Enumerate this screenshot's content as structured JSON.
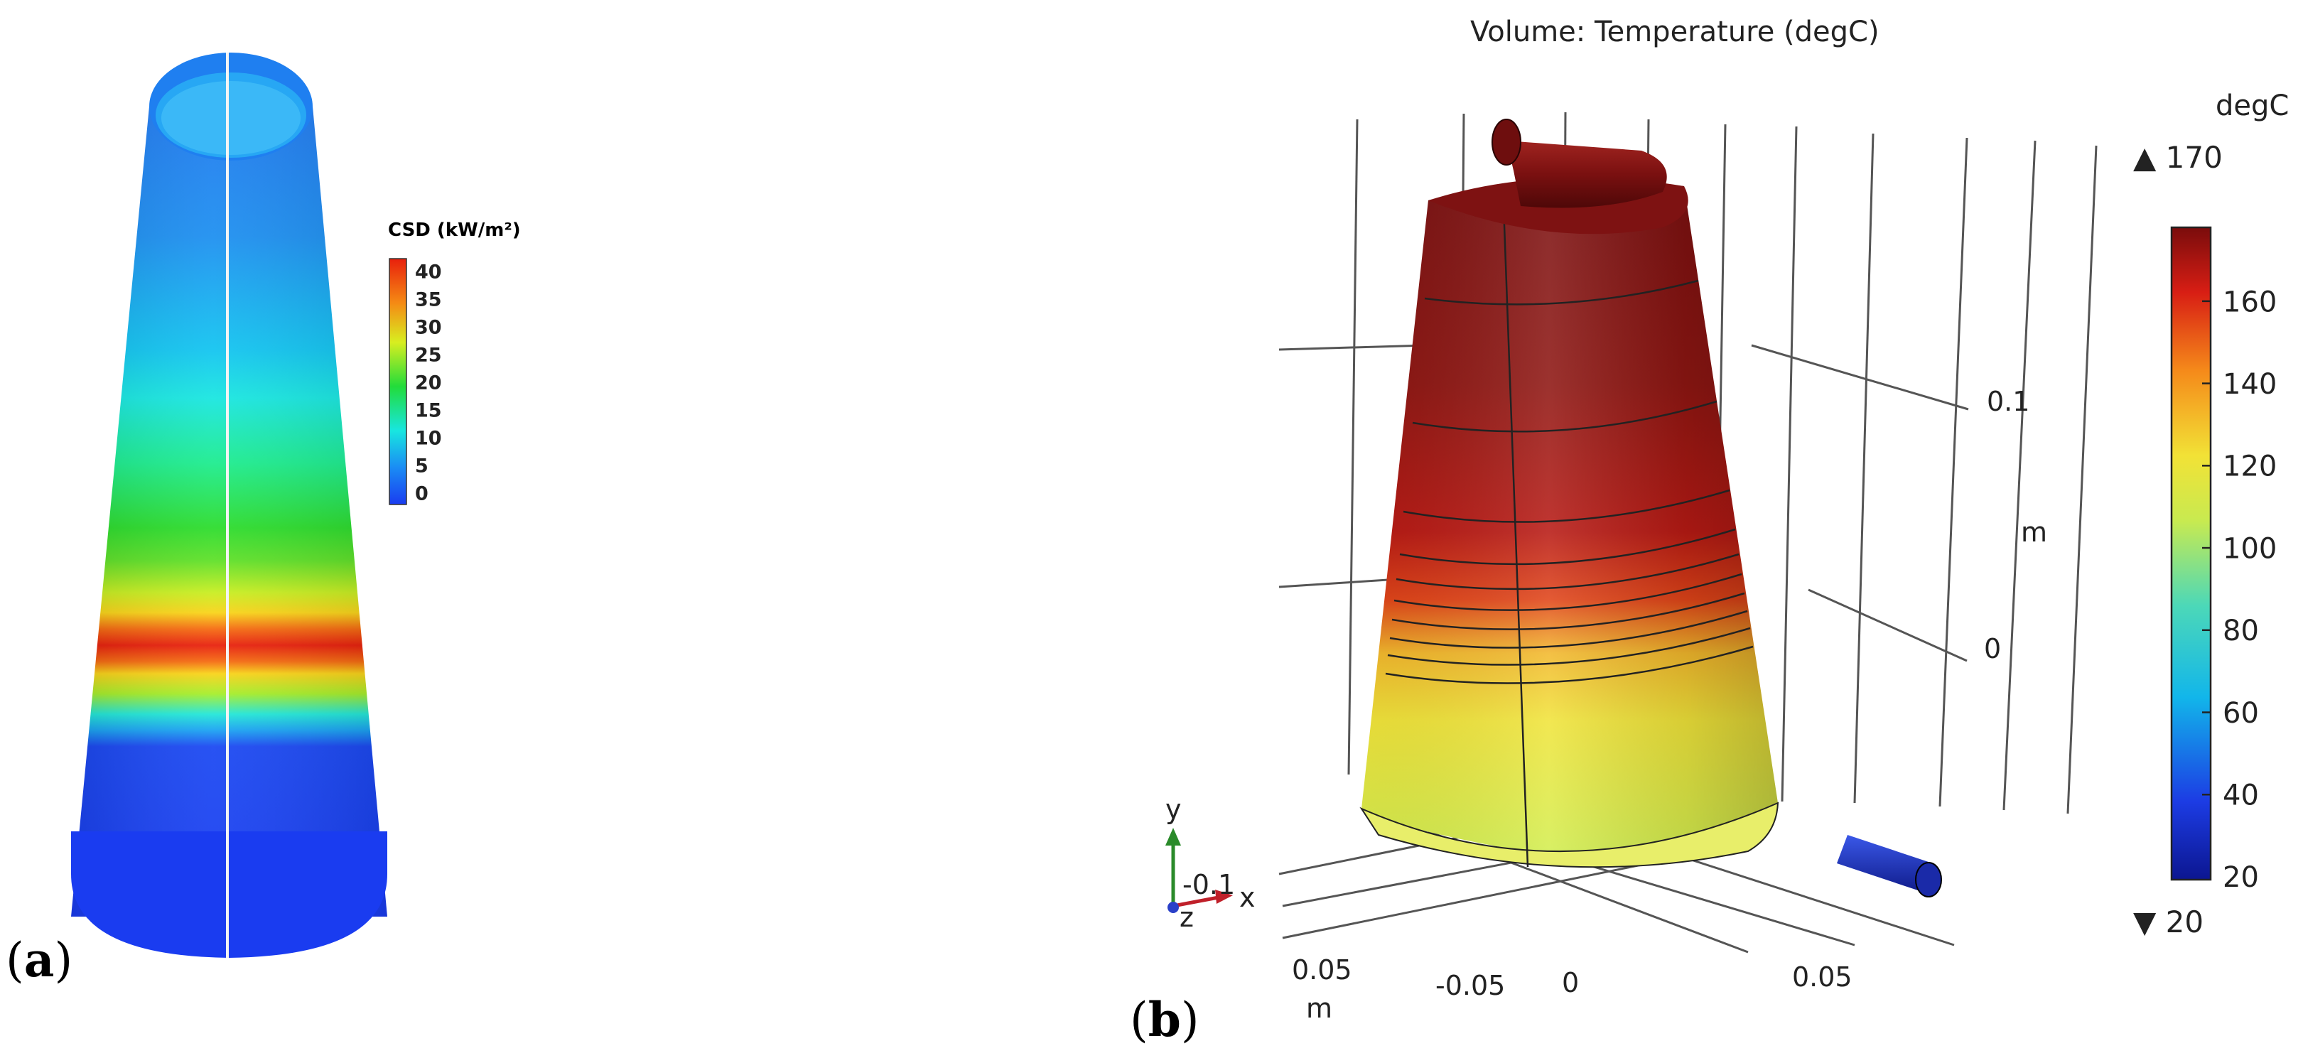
{
  "panel_a": {
    "label_open": "(",
    "label_letter": "a",
    "label_close": ")",
    "colorbar": {
      "title": "CSD (kW/m²)",
      "ticks": [
        "40",
        "35",
        "30",
        "25",
        "20",
        "15",
        "10",
        "5",
        "0"
      ],
      "min": 0,
      "max": 40
    }
  },
  "panel_b": {
    "label_open": "(",
    "label_letter": "b",
    "label_close": ")",
    "title": "Volume: Temperature (degC)",
    "colorbar": {
      "unit": "degC",
      "max_label": "▲ 170",
      "min_label": "▼ 20",
      "ticks": [
        "160",
        "140",
        "120",
        "100",
        "80",
        "60",
        "40",
        "20"
      ],
      "min": 20,
      "max": 170
    },
    "axes": {
      "vertical_unit": "m",
      "vertical_ticks": [
        "0.1",
        "0"
      ],
      "bottom_unit": "m",
      "bottom_ticks_left": [
        "0.05"
      ],
      "bottom_ticks_right": [
        "-0.05",
        "0",
        "0.05"
      ]
    },
    "triad": {
      "y": "y",
      "x": "x",
      "z": "z",
      "value": "-0.1"
    }
  },
  "colors": {
    "csd_band": "#e8200c",
    "cold": "#1a3cf0",
    "hot": "#8b1410",
    "warm": "#f0ea3a"
  }
}
